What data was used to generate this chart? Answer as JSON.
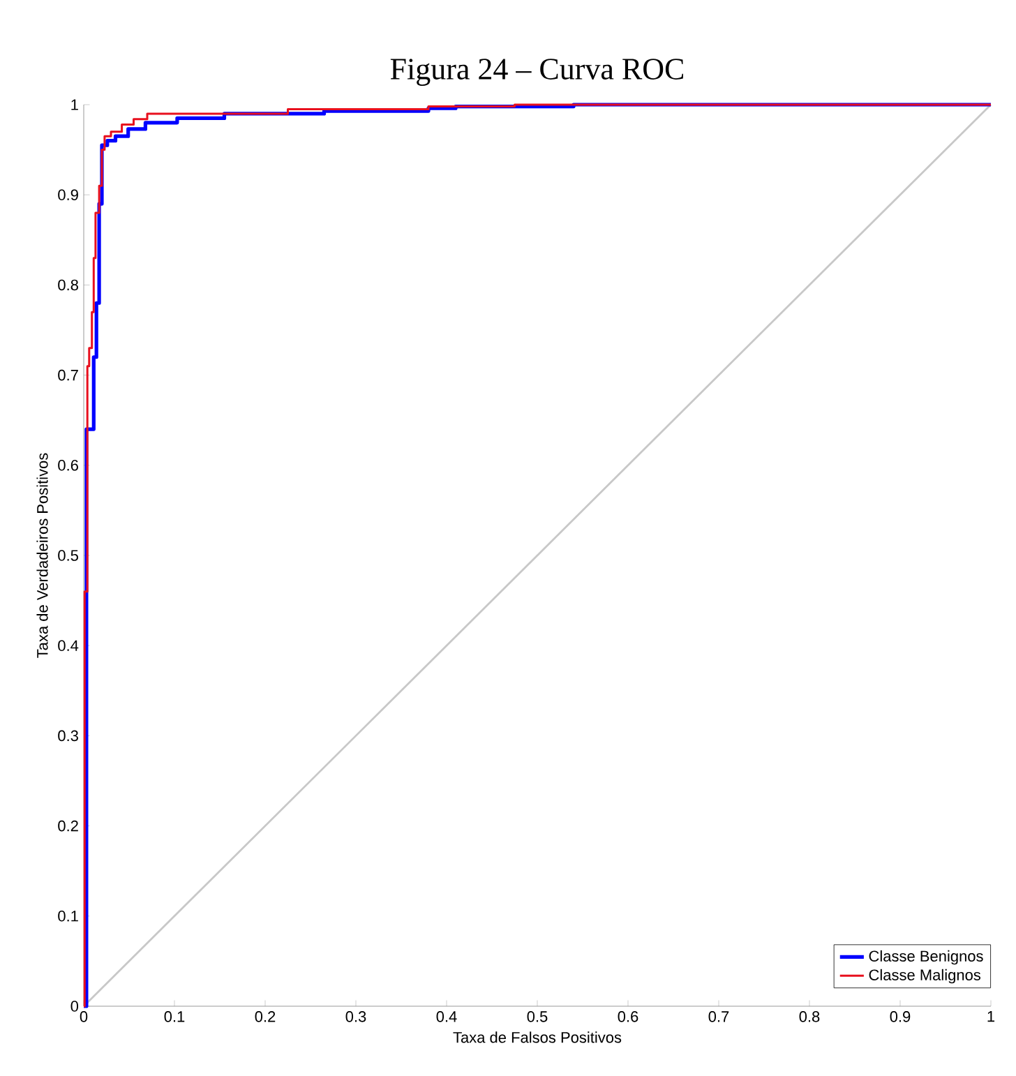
{
  "chart_data": {
    "type": "step",
    "title": "Figura 24 – Curva ROC",
    "xlabel": "Taxa de Falsos Positivos",
    "ylabel": "Taxa de Verdadeiros Positivos",
    "xlim": [
      0,
      1
    ],
    "ylim": [
      0,
      1
    ],
    "xticks": [
      0,
      0.1,
      0.2,
      0.3,
      0.4,
      0.5,
      0.6,
      0.7,
      0.8,
      0.9,
      1
    ],
    "yticks": [
      0,
      0.1,
      0.2,
      0.3,
      0.4,
      0.5,
      0.6,
      0.7,
      0.8,
      0.9,
      1
    ],
    "legend": "bottom right",
    "grid": false,
    "series": [
      {
        "name": "Classe Benignos",
        "color": "#0000ff",
        "x": [
          0,
          0.003,
          0.011,
          0.014,
          0.017,
          0.02,
          0.026,
          0.035,
          0.049,
          0.068,
          0.103,
          0.155,
          0.265,
          0.38,
          0.41,
          0.54,
          1
        ],
        "values": [
          0,
          0.64,
          0.72,
          0.78,
          0.89,
          0.955,
          0.96,
          0.965,
          0.973,
          0.98,
          0.985,
          0.99,
          0.993,
          0.996,
          0.998,
          1,
          1
        ]
      },
      {
        "name": "Classe Malignos",
        "color": "#e8101e",
        "x": [
          0,
          0.001,
          0.004,
          0.006,
          0.009,
          0.011,
          0.013,
          0.017,
          0.02,
          0.023,
          0.03,
          0.042,
          0.055,
          0.07,
          0.225,
          0.38,
          0.475,
          1
        ],
        "values": [
          0,
          0.46,
          0.71,
          0.73,
          0.77,
          0.83,
          0.88,
          0.91,
          0.95,
          0.965,
          0.97,
          0.978,
          0.984,
          0.99,
          0.995,
          0.998,
          1,
          1
        ]
      },
      {
        "type": "line",
        "color": "#c8c8c8",
        "x": [
          0,
          1
        ],
        "values": [
          0,
          1
        ]
      }
    ]
  }
}
